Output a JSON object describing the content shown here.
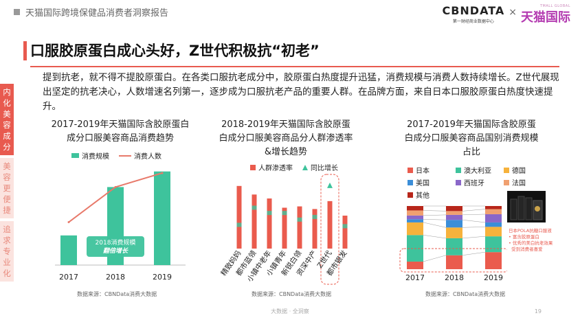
{
  "header": {
    "report_title": "天猫国际跨境保健品消费者洞察报告",
    "cbn_name": "CBNDATA",
    "cbn_sub": "第一财经商业数据中心",
    "times": "×",
    "tmall_sub": "TMALL GLOBAL",
    "tmall_name": "天猫国际"
  },
  "side_tabs": [
    {
      "label": "内化美容成分",
      "active": true
    },
    {
      "label": "美容更便捷",
      "active": false
    },
    {
      "label": "追求专业化",
      "active": false
    }
  ],
  "main_title": "口服胶原蛋白成心头好，Z世代积极抗“初老”",
  "paragraph": "提到抗老，就不得不提胶原蛋白。在各类口服抗老成分中，胶原蛋白热度提升迅猛，消费规模与消费人数持续增长。Z世代展现出坚定的抗老决心，人数增速名列第一，逐步成为口服抗老产品的重要人群。在品牌方面，来自日本口服胶原蛋白热度快速提升。",
  "colors": {
    "accent": "#e85a4f",
    "green": "#3ec39c",
    "orange_line": "#e8796a",
    "red": "#ea5b4d",
    "yellow": "#f6b23c",
    "blue": "#3b8ed8",
    "purple": "#8a67c9",
    "light_orange": "#f0a070",
    "dark_red": "#b8261a"
  },
  "chart_data": [
    {
      "type": "bar",
      "title": "2017-2019年天猫国际含胶原蛋白成分口服美容商品消费趋势",
      "categories": [
        "2017",
        "2018",
        "2019"
      ],
      "series": [
        {
          "name": "消费规模",
          "type": "bar",
          "values": [
            0.38,
            1.0,
            1.2
          ]
        },
        {
          "name": "消费人数",
          "type": "line",
          "values": [
            0.55,
            1.0,
            1.18
          ]
        }
      ],
      "annotation": {
        "line1": "2018消费规模",
        "line2": "翻倍增长"
      },
      "source": "数据来源：CBNData消费大数据"
    },
    {
      "type": "bar",
      "title": "2018-2019年天猫国际含胶原蛋白成分口服美容商品分人群渗透率&增长趋势",
      "categories": [
        "精致妈妈",
        "都市蓝领",
        "小镇中老年",
        "小镇青年",
        "新锐白领",
        "资深中产",
        "Z世代",
        "都市银发"
      ],
      "series": [
        {
          "name": "人群渗透率",
          "type": "bar",
          "values": [
            0.95,
            0.82,
            0.76,
            0.62,
            0.64,
            0.6,
            0.72,
            0.5
          ]
        },
        {
          "name": "同比增长",
          "type": "marker",
          "values": [
            0.36,
            0.62,
            0.54,
            0.54,
            0.44,
            0.48,
            0.96,
            0.34
          ]
        }
      ],
      "source": "数据来源：CBNData消费大数据"
    },
    {
      "type": "bar",
      "title": "2017-2019年天猫国际含胶原蛋白成分口服美容商品国别消费规模占比",
      "categories": [
        "2017",
        "2018",
        "2019"
      ],
      "series": [
        {
          "name": "日本",
          "values": [
            0.12,
            0.22,
            0.27
          ]
        },
        {
          "name": "澳大利亚",
          "values": [
            0.42,
            0.27,
            0.25
          ]
        },
        {
          "name": "德国",
          "values": [
            0.2,
            0.17,
            0.15
          ]
        },
        {
          "name": "美国",
          "values": [
            0.05,
            0.12,
            0.07
          ]
        },
        {
          "name": "西班牙",
          "values": [
            0.06,
            0.08,
            0.13
          ]
        },
        {
          "name": "法国",
          "values": [
            0.08,
            0.06,
            0.08
          ]
        },
        {
          "name": "其他",
          "values": [
            0.07,
            0.08,
            0.05
          ]
        }
      ],
      "annotation": {
        "brand": "日本POLA抗糖口服液",
        "point1": "富含胶原蛋白",
        "point2": "优秀的美白抗老效果",
        "point3": "受到消费者喜爱"
      },
      "source": "数据来源：CBNData消费大数据"
    }
  ],
  "footer": {
    "text": "大数据 · 全洞察",
    "page": "19"
  }
}
